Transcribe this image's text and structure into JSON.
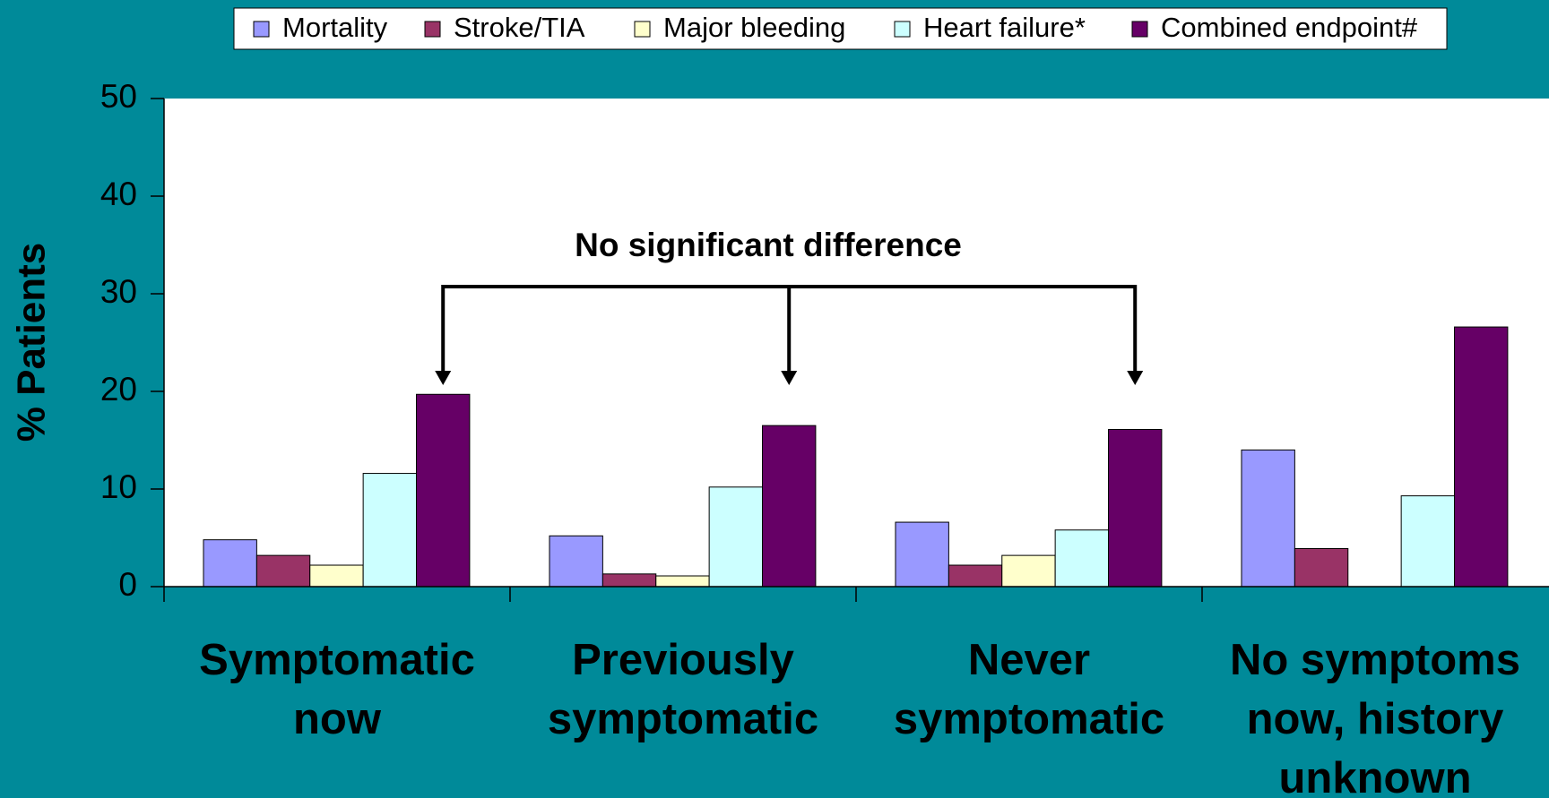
{
  "chart_data": {
    "type": "bar",
    "y_label": "% Patients",
    "annotation": "No significant difference",
    "categories": [
      "Symptomatic now",
      "Previously symptomatic",
      "Never symptomatic",
      "No symptoms now, history unknown"
    ],
    "series": [
      {
        "name": "Mortality",
        "color": "#9999ff",
        "values": [
          4.8,
          5.2,
          6.6,
          14.0
        ]
      },
      {
        "name": "Stroke/TIA",
        "color": "#993366",
        "values": [
          3.2,
          1.3,
          2.2,
          3.9
        ]
      },
      {
        "name": "Major bleeding",
        "color": "#ffffcc",
        "values": [
          2.2,
          1.1,
          3.2,
          null
        ]
      },
      {
        "name": "Heart failure*",
        "color": "#ccffff",
        "values": [
          11.6,
          10.2,
          5.8,
          9.3
        ]
      },
      {
        "name": "Combined endpoint#",
        "color": "#660066",
        "values": [
          19.7,
          16.5,
          16.1,
          26.6
        ]
      }
    ],
    "ylim": [
      0,
      50
    ],
    "yticks": [
      0,
      10,
      20,
      30,
      40,
      50
    ]
  }
}
